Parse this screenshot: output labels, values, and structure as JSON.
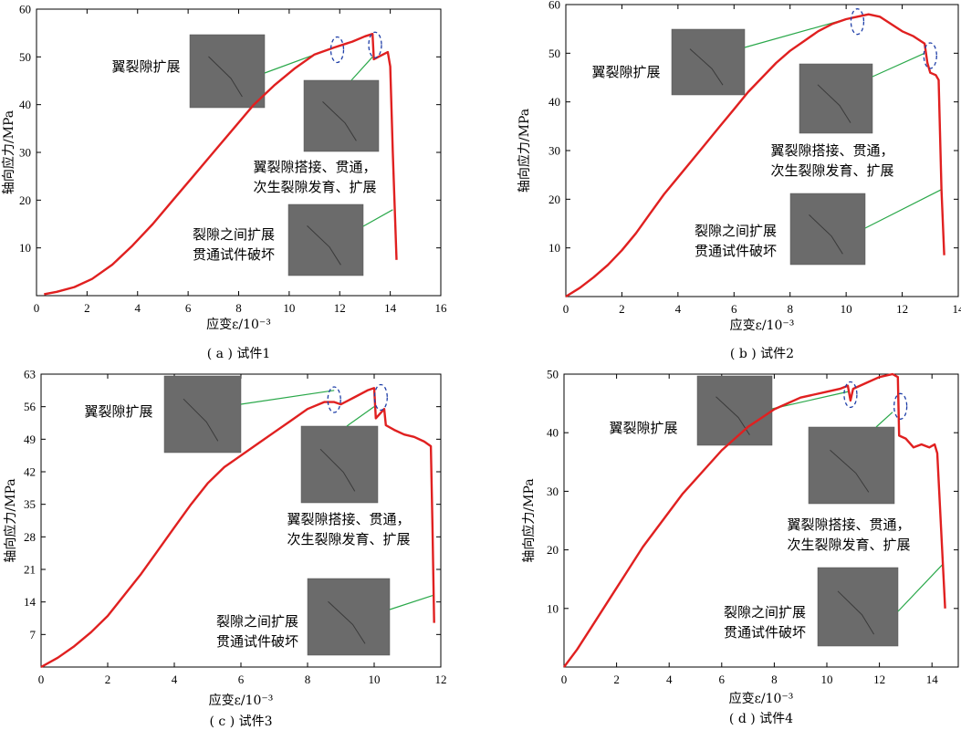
{
  "figure": {
    "colors": {
      "curve": "#e02020",
      "leader": "#2aa84a",
      "circle": "#1f3fa8",
      "photo": "#6b6b6b",
      "axis": "#000000"
    }
  },
  "chart_data": [
    {
      "type": "line",
      "caption": "( a ) 试件1",
      "xlabel": "应变ε/10⁻³",
      "ylabel": "轴向应力/MPa",
      "xlim": [
        0,
        16
      ],
      "ylim": [
        0,
        60
      ],
      "xticks": [
        0,
        2,
        4,
        6,
        8,
        10,
        12,
        14,
        16
      ],
      "yticks": [
        10,
        20,
        30,
        40,
        50,
        60
      ],
      "series": [
        {
          "x": [
            0.3,
            0.8,
            1.5,
            2.2,
            3.0,
            3.8,
            4.6,
            5.4,
            6.2,
            7.0,
            7.8,
            8.6,
            9.4,
            10.2,
            11.0,
            11.8,
            12.5,
            13.0,
            13.3,
            13.35,
            13.6,
            13.9,
            14.0,
            14.1,
            14.25
          ],
          "y": [
            0.3,
            0.8,
            1.8,
            3.5,
            6.5,
            10.5,
            15.0,
            20.0,
            25.0,
            30.0,
            35.0,
            40.0,
            44.0,
            47.5,
            50.5,
            52.0,
            53.2,
            54.3,
            54.8,
            49.5,
            50.2,
            51.0,
            48.0,
            30.0,
            7.5
          ]
        }
      ],
      "annotations": [
        {
          "text": "翼裂隙扩展",
          "target": [
            11.8,
            52.0
          ]
        },
        {
          "text": "翼裂隙搭接、贯通，\n次生裂隙发育、扩展",
          "target": [
            13.3,
            50.0
          ]
        },
        {
          "text": "裂隙之间扩展\n贯通试件破坏",
          "target": [
            14.1,
            18.0
          ]
        }
      ],
      "circles": [
        [
          11.9,
          51.5
        ],
        [
          13.4,
          52.5
        ]
      ]
    },
    {
      "type": "line",
      "caption": "( b ) 试件2",
      "xlabel": "应变ε/10⁻³",
      "ylabel": "轴向应力/MPa",
      "xlim": [
        0,
        14
      ],
      "ylim": [
        0,
        60
      ],
      "xticks": [
        0,
        2,
        4,
        6,
        8,
        10,
        12,
        14
      ],
      "yticks": [
        10,
        20,
        30,
        40,
        50,
        60
      ],
      "series": [
        {
          "x": [
            0.0,
            0.5,
            1.0,
            1.5,
            2.0,
            2.5,
            3.0,
            3.5,
            4.0,
            4.5,
            5.0,
            5.5,
            6.0,
            6.5,
            7.0,
            7.5,
            8.0,
            8.5,
            9.0,
            9.5,
            10.0,
            10.4,
            10.8,
            11.2,
            11.6,
            12.0,
            12.4,
            12.8,
            12.9,
            13.0,
            13.2,
            13.3,
            13.4,
            13.5
          ],
          "y": [
            0.0,
            1.8,
            4.0,
            6.5,
            9.5,
            13.0,
            17.0,
            21.0,
            24.5,
            28.0,
            31.5,
            35.0,
            38.5,
            42.0,
            45.0,
            48.0,
            50.5,
            52.5,
            54.5,
            56.0,
            57.0,
            57.5,
            58.0,
            57.5,
            56.0,
            54.5,
            53.5,
            52.0,
            48.0,
            46.0,
            45.5,
            44.5,
            22.0,
            8.5
          ]
        }
      ],
      "annotations": [
        {
          "text": "翼裂隙扩展",
          "target": [
            10.3,
            57.5
          ]
        },
        {
          "text": "翼裂隙搭接、贯通，\n次生裂隙发育、扩展",
          "target": [
            12.8,
            50.0
          ]
        },
        {
          "text": "裂隙之间扩展\n贯通试件破坏",
          "target": [
            13.4,
            22.0
          ]
        }
      ],
      "circles": [
        [
          10.4,
          56.5
        ],
        [
          13.0,
          49.5
        ]
      ]
    },
    {
      "type": "line",
      "caption": "( c ) 试件3",
      "xlabel": "应变ε/10⁻³",
      "ylabel": "轴向应力/MPa",
      "xlim": [
        0,
        12
      ],
      "ylim": [
        0,
        63
      ],
      "xticks": [
        0,
        2,
        4,
        6,
        8,
        10,
        12
      ],
      "yticks": [
        7,
        14,
        21,
        28,
        35,
        42,
        49,
        56,
        63
      ],
      "series": [
        {
          "x": [
            0.0,
            0.5,
            1.0,
            1.5,
            2.0,
            2.5,
            3.0,
            3.5,
            4.0,
            4.5,
            5.0,
            5.5,
            6.0,
            6.5,
            7.0,
            7.5,
            8.0,
            8.5,
            8.8,
            9.0,
            9.4,
            9.8,
            10.0,
            10.05,
            10.3,
            10.35,
            10.6,
            10.9,
            11.2,
            11.5,
            11.7,
            11.75,
            11.8
          ],
          "y": [
            0.0,
            2.0,
            4.5,
            7.5,
            11.0,
            15.5,
            20.0,
            25.0,
            30.0,
            35.0,
            39.5,
            43.0,
            45.5,
            48.0,
            50.5,
            53.0,
            55.5,
            57.0,
            57.0,
            56.5,
            58.0,
            59.5,
            60.0,
            53.5,
            55.5,
            52.0,
            51.0,
            50.0,
            49.5,
            48.5,
            47.5,
            30.0,
            9.5
          ]
        }
      ],
      "annotations": [
        {
          "text": "翼裂隙扩展",
          "target": [
            8.8,
            59.5
          ]
        },
        {
          "text": "翼裂隙搭接、贯通，\n次生裂隙发育、扩展",
          "target": [
            10.0,
            56.0
          ]
        },
        {
          "text": "裂隙之间扩展\n贯通试件破坏",
          "target": [
            11.8,
            15.5
          ]
        }
      ],
      "circles": [
        [
          8.8,
          57.5
        ],
        [
          10.2,
          58.0
        ]
      ]
    },
    {
      "type": "line",
      "caption": "( d ) 试件4",
      "xlabel": "应变ε/10⁻³",
      "ylabel": "轴向应力/MPa",
      "xlim": [
        0,
        15
      ],
      "ylim": [
        0,
        50
      ],
      "xticks": [
        0,
        2,
        4,
        6,
        8,
        10,
        12,
        14
      ],
      "yticks": [
        10,
        20,
        30,
        40,
        50
      ],
      "series": [
        {
          "x": [
            0.0,
            0.5,
            1.0,
            1.5,
            2.0,
            2.5,
            3.0,
            3.5,
            4.0,
            4.5,
            5.0,
            5.5,
            6.0,
            6.5,
            7.0,
            7.5,
            8.0,
            8.5,
            9.0,
            9.5,
            10.0,
            10.5,
            10.8,
            10.9,
            11.0,
            11.5,
            12.0,
            12.5,
            12.7,
            12.75,
            13.0,
            13.3,
            13.6,
            13.9,
            14.1,
            14.2,
            14.5
          ],
          "y": [
            0.0,
            3.0,
            6.5,
            10.0,
            13.5,
            17.0,
            20.5,
            23.5,
            26.5,
            29.5,
            32.0,
            34.5,
            37.0,
            39.0,
            41.0,
            42.5,
            44.0,
            45.0,
            46.0,
            46.5,
            47.0,
            47.5,
            48.0,
            45.5,
            47.5,
            48.5,
            49.5,
            50.0,
            49.5,
            39.5,
            39.0,
            37.5,
            38.0,
            37.5,
            38.0,
            36.5,
            10.0
          ]
        }
      ],
      "annotations": [
        {
          "text": "翼裂隙扩展",
          "target": [
            10.8,
            47.0
          ]
        },
        {
          "text": "翼裂隙搭接、贯通，\n次生裂隙发育、扩展",
          "target": [
            12.5,
            43.5
          ]
        },
        {
          "text": "裂隙之间扩展\n贯通试件破坏",
          "target": [
            14.4,
            17.5
          ]
        }
      ],
      "circles": [
        [
          10.9,
          46.5
        ],
        [
          12.8,
          44.5
        ]
      ]
    }
  ]
}
